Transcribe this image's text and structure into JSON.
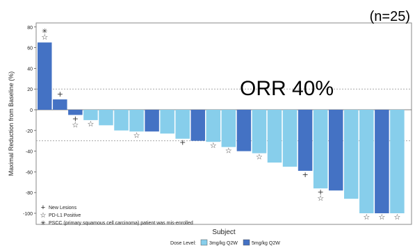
{
  "chart_data": {
    "type": "bar",
    "annotation_n": "(n=25)",
    "annotation_orr": "ORR 40%",
    "xlabel": "Subject",
    "ylabel": "Maximal Reduction from Baseline (%)",
    "ylim": [
      -110,
      85
    ],
    "yticks": [
      80,
      60,
      40,
      20,
      0,
      -20,
      -40,
      -60,
      -80,
      -100
    ],
    "reference_lines": [
      20,
      -30
    ],
    "colors": {
      "3mg/kg Q2W": "#87ceeb",
      "5mg/kg Q2W": "#4472c4"
    },
    "series": [
      {
        "dose": "5mg/kg Q2W",
        "value": 65,
        "markers": [
          "pscc",
          "pdl1"
        ]
      },
      {
        "dose": "5mg/kg Q2W",
        "value": 10,
        "markers": [
          "new_lesion"
        ]
      },
      {
        "dose": "5mg/kg Q2W",
        "value": -5,
        "markers": [
          "new_lesion",
          "pdl1"
        ]
      },
      {
        "dose": "3mg/kg Q2W",
        "value": -10,
        "markers": [
          "pdl1"
        ]
      },
      {
        "dose": "3mg/kg Q2W",
        "value": -15,
        "markers": []
      },
      {
        "dose": "3mg/kg Q2W",
        "value": -20,
        "markers": []
      },
      {
        "dose": "3mg/kg Q2W",
        "value": -21,
        "markers": [
          "pdl1"
        ]
      },
      {
        "dose": "5mg/kg Q2W",
        "value": -21,
        "markers": []
      },
      {
        "dose": "3mg/kg Q2W",
        "value": -23,
        "markers": []
      },
      {
        "dose": "3mg/kg Q2W",
        "value": -28,
        "markers": [
          "new_lesion"
        ]
      },
      {
        "dose": "5mg/kg Q2W",
        "value": -30,
        "markers": []
      },
      {
        "dose": "3mg/kg Q2W",
        "value": -31,
        "markers": [
          "pdl1"
        ]
      },
      {
        "dose": "3mg/kg Q2W",
        "value": -36,
        "markers": [
          "pdl1"
        ]
      },
      {
        "dose": "5mg/kg Q2W",
        "value": -40,
        "markers": []
      },
      {
        "dose": "3mg/kg Q2W",
        "value": -42,
        "markers": [
          "pdl1"
        ]
      },
      {
        "dose": "3mg/kg Q2W",
        "value": -51,
        "markers": []
      },
      {
        "dose": "3mg/kg Q2W",
        "value": -55,
        "markers": []
      },
      {
        "dose": "5mg/kg Q2W",
        "value": -59,
        "markers": [
          "new_lesion"
        ]
      },
      {
        "dose": "3mg/kg Q2W",
        "value": -76,
        "markers": [
          "new_lesion",
          "pdl1"
        ]
      },
      {
        "dose": "5mg/kg Q2W",
        "value": -78,
        "markers": []
      },
      {
        "dose": "3mg/kg Q2W",
        "value": -86,
        "markers": []
      },
      {
        "dose": "3mg/kg Q2W",
        "value": -100,
        "markers": [
          "pdl1"
        ]
      },
      {
        "dose": "5mg/kg Q2W",
        "value": -100,
        "markers": [
          "pdl1"
        ]
      },
      {
        "dose": "3mg/kg Q2W",
        "value": -100,
        "markers": [
          "pdl1"
        ]
      }
    ],
    "marker_legend": [
      {
        "key": "new_lesion",
        "symbol": "+",
        "label": "New Lesions"
      },
      {
        "key": "pdl1",
        "symbol": "☆",
        "label": "PD-L1 Positive"
      },
      {
        "key": "pscc",
        "symbol": "✳",
        "label": "PSCC (primary squamous cell carcinoma) patient was mis-enrolled"
      }
    ],
    "dose_legend": {
      "title": "Dose Level:",
      "items": [
        {
          "label": "3mg/kg Q2W",
          "color": "#87ceeb"
        },
        {
          "label": "5mg/kg Q2W",
          "color": "#4472c4"
        }
      ]
    }
  }
}
